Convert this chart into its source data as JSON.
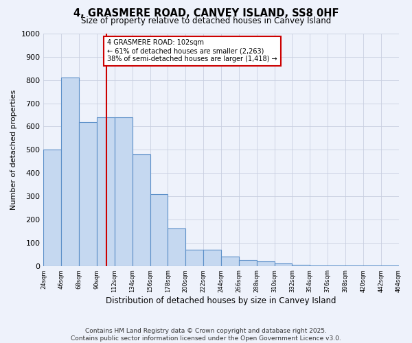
{
  "title": "4, GRASMERE ROAD, CANVEY ISLAND, SS8 0HF",
  "subtitle": "Size of property relative to detached houses in Canvey Island",
  "xlabel": "Distribution of detached houses by size in Canvey Island",
  "ylabel": "Number of detached properties",
  "bar_values": [
    500,
    810,
    620,
    640,
    640,
    480,
    310,
    160,
    70,
    70,
    40,
    25,
    20,
    10,
    5,
    3,
    2,
    2,
    1,
    1
  ],
  "bin_starts": [
    24,
    46,
    68,
    90,
    112,
    134,
    156,
    178,
    200,
    222,
    244,
    266,
    288,
    310,
    332,
    354,
    376,
    398,
    420,
    442
  ],
  "bin_width": 22,
  "bar_color": "#c5d8f0",
  "bar_edge_color": "#5b8fc8",
  "ylim": [
    0,
    1000
  ],
  "yticks": [
    0,
    100,
    200,
    300,
    400,
    500,
    600,
    700,
    800,
    900,
    1000
  ],
  "property_size": 102,
  "annotation_text": "4 GRASMERE ROAD: 102sqm\n← 61% of detached houses are smaller (2,263)\n38% of semi-detached houses are larger (1,418) →",
  "annotation_box_facecolor": "#ffffff",
  "annotation_box_edgecolor": "#cc0000",
  "red_line_color": "#cc0000",
  "footer_text": "Contains HM Land Registry data © Crown copyright and database right 2025.\nContains public sector information licensed under the Open Government Licence v3.0.",
  "background_color": "#eef2fb",
  "grid_color": "#c8cfe0",
  "xtick_labels": [
    "24sqm",
    "46sqm",
    "68sqm",
    "90sqm",
    "112sqm",
    "134sqm",
    "156sqm",
    "178sqm",
    "200sqm",
    "222sqm",
    "244sqm",
    "266sqm",
    "288sqm",
    "310sqm",
    "332sqm",
    "354sqm",
    "376sqm",
    "398sqm",
    "420sqm",
    "442sqm",
    "464sqm"
  ]
}
